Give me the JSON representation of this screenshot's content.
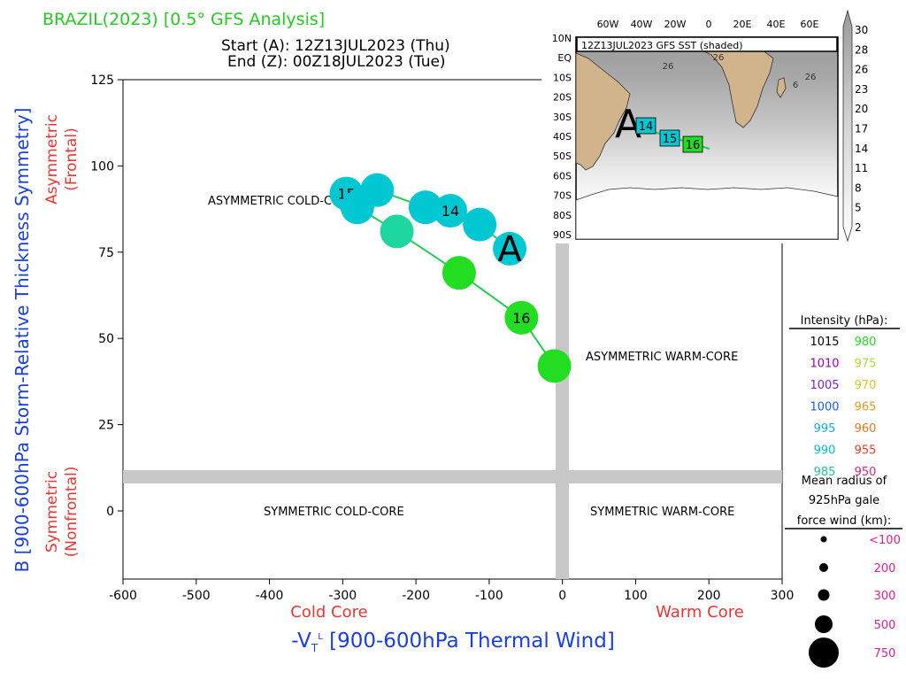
{
  "header": {
    "title": "BRAZIL(2023) [0.5° GFS Analysis]",
    "start_line": "Start (A): 12Z13JUL2023 (Thu)",
    "end_line": "End (Z): 00Z18JUL2023 (Tue)"
  },
  "colors": {
    "title": "#22cc22",
    "axis_label_blue": "#1a3fe0",
    "axis_label_red": "#ee3333",
    "quadrant_divider": "#c8c8c8",
    "track_line": "#22cc55",
    "land": "#d2b48c",
    "legend_pressure_mslp_label": "#000000"
  },
  "chart_data": {
    "type": "scatter",
    "xlabel_main": "-V",
    "xlabel_sub": "T",
    "xlabel_sup": "L",
    "xlabel_rest": " [900-600hPa Thermal Wind]",
    "ylabel": "B [900-600hPa Storm-Relative Thickness Symmetry]",
    "x_left_label": "Cold Core",
    "x_right_label": "Warm Core",
    "y_top_label_1": "Asymmetric",
    "y_top_label_2": "(Frontal)",
    "y_bottom_label_1": "Symmetric",
    "y_bottom_label_2": "(Nonfrontal)",
    "xlim": [
      -600,
      300
    ],
    "ylim": [
      -20,
      125
    ],
    "x_ticks": [
      -600,
      -500,
      -400,
      -300,
      -200,
      -100,
      0,
      100,
      200,
      300
    ],
    "y_ticks": [
      0,
      25,
      50,
      75,
      100,
      125
    ],
    "quadrant_labels": {
      "asym_cold": "ASYMMETRIC COLD-CORE",
      "asym_warm": "ASYMMETRIC WARM-CORE",
      "sym_cold": "SYMMETRIC COLD-CORE",
      "sym_warm": "SYMMETRIC WARM-CORE"
    },
    "start_marker": "A",
    "points": [
      {
        "x": -72,
        "y": 76,
        "color": "#00c8d2",
        "label": ""
      },
      {
        "x": -113,
        "y": 83,
        "color": "#00c8d2",
        "label": ""
      },
      {
        "x": -153,
        "y": 87,
        "color": "#00c8d2",
        "label": "14"
      },
      {
        "x": -187,
        "y": 88,
        "color": "#00c8d2",
        "label": ""
      },
      {
        "x": -253,
        "y": 93,
        "color": "#00c8d2",
        "label": ""
      },
      {
        "x": -295,
        "y": 92,
        "color": "#00c8d2",
        "label": "15"
      },
      {
        "x": -280,
        "y": 88,
        "color": "#00c8d2",
        "label": ""
      },
      {
        "x": -226,
        "y": 81,
        "color": "#1ed6a0",
        "label": ""
      },
      {
        "x": -141,
        "y": 69,
        "color": "#22dd22",
        "label": ""
      },
      {
        "x": -56,
        "y": 56,
        "color": "#22dd22",
        "label": "16"
      },
      {
        "x": -11,
        "y": 42,
        "color": "#22dd22",
        "label": ""
      }
    ]
  },
  "legend": {
    "intensity_title": "Intensity (hPa):",
    "pairs": [
      {
        "left": "1015",
        "left_color": "#000000",
        "right": "980",
        "right_color": "#22dd22"
      },
      {
        "left": "1010",
        "left_color": "#9900cc",
        "right": "975",
        "right_color": "#aadd33"
      },
      {
        "left": "1005",
        "left_color": "#7a22e0",
        "right": "970",
        "right_color": "#e6c31e"
      },
      {
        "left": "1000",
        "left_color": "#1e5ae6",
        "right": "965",
        "right_color": "#e69a1e"
      },
      {
        "left": "995",
        "left_color": "#12aae6",
        "right": "960",
        "right_color": "#e6781e"
      },
      {
        "left": "990",
        "left_color": "#00c0c8",
        "right": "955",
        "right_color": "#e63c28"
      },
      {
        "left": "985",
        "left_color": "#1ec88c",
        "right": "950",
        "right_color": "#dd1e8c"
      }
    ],
    "radius_title_1": "Mean radius of",
    "radius_title_2": "925hPa gale",
    "radius_title_3": "force wind (km):",
    "radius_items": [
      "<100",
      "200",
      "300",
      "500",
      "750"
    ],
    "radius_color": "#dd1e8c"
  },
  "inset": {
    "title": "12Z13JUL2023 GFS SST (shaded)",
    "lon_labels": [
      "60W",
      "40W",
      "20W",
      "0",
      "20E",
      "40E",
      "60E"
    ],
    "lat_labels": [
      "10N",
      "EQ",
      "10S",
      "20S",
      "30S",
      "40S",
      "50S",
      "60S",
      "70S",
      "80S",
      "90S"
    ],
    "colorbar_labels": [
      "30",
      "28",
      "26",
      "23",
      "20",
      "17",
      "14",
      "11",
      "8",
      "5",
      "2"
    ],
    "sst_contour_labels": [
      "26",
      "26",
      "26",
      "6"
    ],
    "start_marker": "A",
    "track_boxes": [
      {
        "label": "14",
        "color": "#00c8d2"
      },
      {
        "label": "15",
        "color": "#00c8d2"
      },
      {
        "label": "16",
        "color": "#22dd22"
      }
    ]
  }
}
